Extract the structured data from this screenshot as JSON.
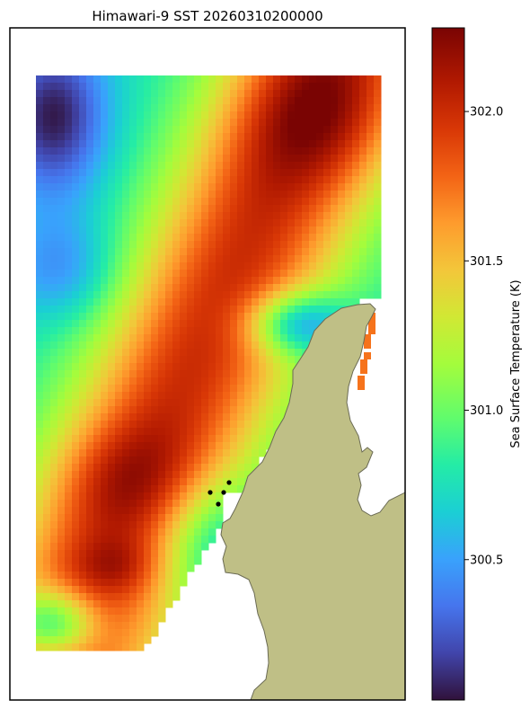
{
  "chart_data": {
    "type": "heatmap",
    "title": "Himawari-9 SST 20260310200000",
    "colorbar": {
      "label": "Sea Surface Temperature (K)",
      "range": [
        300.03,
        302.28
      ],
      "ticks": [
        300.5,
        301.0,
        301.5,
        302.0
      ],
      "tick_labels": [
        "300.5",
        "301.0",
        "301.5",
        "302.0"
      ],
      "colormap": "turbo"
    },
    "field": {
      "description": "gridded sea surface temperature over ocean; land masked",
      "min": 300.03,
      "max": 302.28
    },
    "markers": [
      {
        "label": "point 1"
      },
      {
        "label": "point 2"
      },
      {
        "label": "point 3"
      },
      {
        "label": "point 4"
      }
    ],
    "colors": {
      "land": "#bfbf86",
      "coast": "#6b6b55",
      "marker": "#000000",
      "frame": "#000000"
    }
  }
}
